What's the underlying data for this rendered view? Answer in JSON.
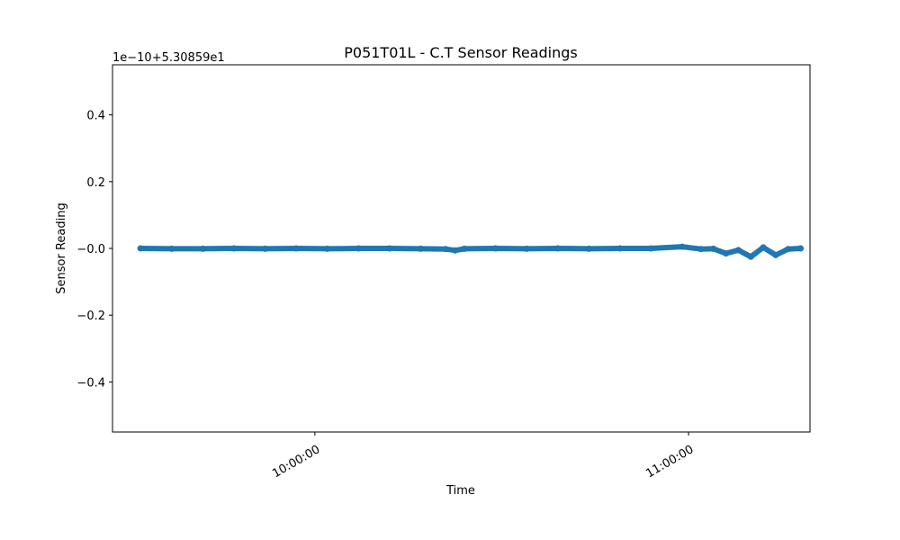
{
  "chart_data": {
    "type": "line",
    "title": "P051T01L - C.T Sensor Readings",
    "xlabel": "Time",
    "ylabel": "Sensor Reading",
    "offset_label": "1e−10+5.30859e1",
    "x_tick_labels": [
      "10:00:00",
      "11:00:00"
    ],
    "y_ticks": [
      {
        "value": 0.4,
        "label": "0.4"
      },
      {
        "value": 0.2,
        "label": "0.2"
      },
      {
        "value": 0.0,
        "label": "−0.0"
      },
      {
        "value": -0.2,
        "label": "−0.2"
      },
      {
        "value": -0.4,
        "label": "−0.4"
      }
    ],
    "xlim": [
      "09:27:30",
      "11:19:30"
    ],
    "ylim": [
      -0.55,
      0.55
    ],
    "grid": false,
    "series": [
      {
        "color": "#1f77b4",
        "x": [
          "09:32:00",
          "09:37:00",
          "09:42:00",
          "09:47:00",
          "09:52:00",
          "09:57:00",
          "10:02:00",
          "10:07:00",
          "10:12:00",
          "10:17:00",
          "10:21:00",
          "10:22:30",
          "10:24:00",
          "10:29:00",
          "10:34:00",
          "10:39:00",
          "10:44:00",
          "10:49:00",
          "10:54:00",
          "10:59:00",
          "11:02:00",
          "11:04:00",
          "11:06:00",
          "11:08:00",
          "11:10:00",
          "11:12:00",
          "11:14:00",
          "11:16:00",
          "11:18:00"
        ],
        "values": [
          0.0,
          -0.001,
          -0.001,
          0.0,
          -0.001,
          0.0,
          -0.001,
          0.0,
          0.0,
          -0.001,
          -0.002,
          -0.006,
          -0.001,
          0.0,
          -0.001,
          0.0,
          -0.001,
          0.0,
          0.0,
          0.005,
          -0.002,
          -0.001,
          -0.015,
          -0.005,
          -0.025,
          0.003,
          -0.02,
          -0.002,
          0.0
        ]
      }
    ]
  }
}
